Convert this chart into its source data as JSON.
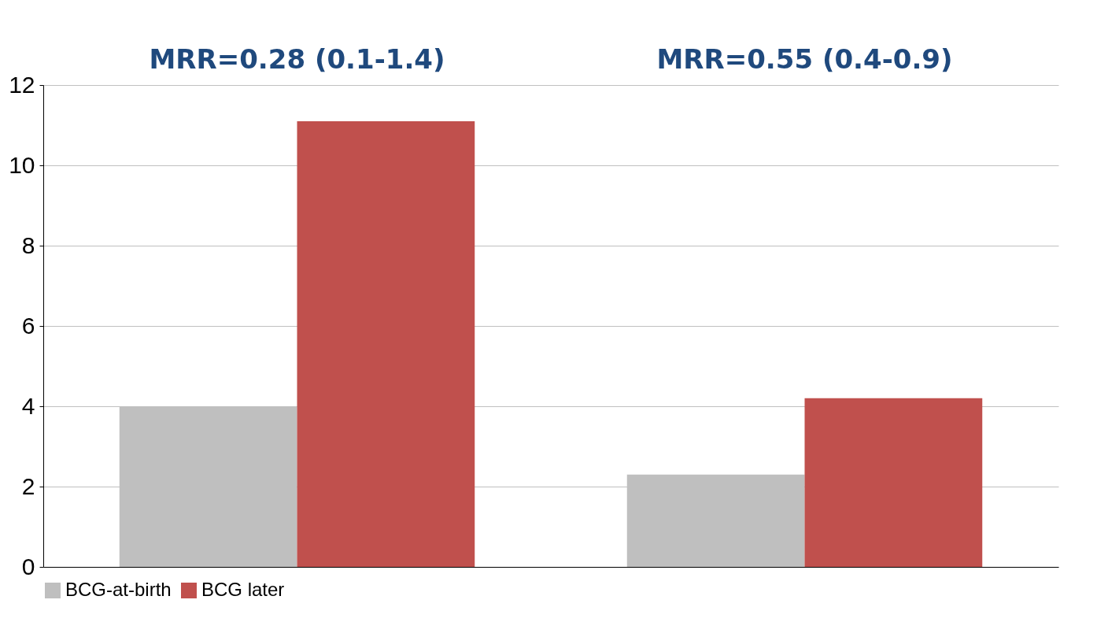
{
  "chart_data": {
    "type": "bar",
    "categories": [
      null,
      null
    ],
    "series": [
      {
        "name": "BCG-at-birth",
        "color": "#bfbfbf",
        "values": [
          4.0,
          2.3
        ]
      },
      {
        "name": "BCG later",
        "color": "#c0504d",
        "values": [
          11.1,
          4.2
        ]
      }
    ],
    "annotations": [
      "MRR=0.28 (0.1-1.4)",
      "MRR=0.55 (0.4-0.9)"
    ],
    "ylim": [
      0,
      12
    ],
    "yticks": [
      0,
      2,
      4,
      6,
      8,
      10,
      12
    ],
    "grid": "y",
    "legend": "bottom",
    "tick_labels": "y"
  }
}
